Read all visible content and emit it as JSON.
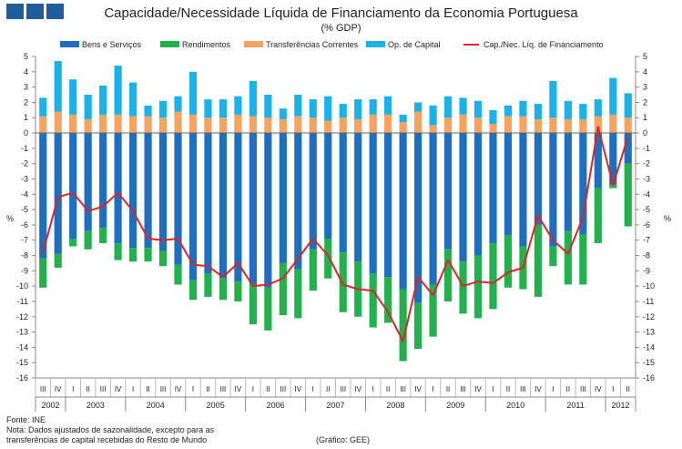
{
  "header": {
    "title": "Capacidade/Necessidade Líquida de Financiamento da Economia Portuguesa",
    "subtitle": "(% GDP)"
  },
  "footer": {
    "source": "Fonte: INE",
    "note_line1": "Nota: Dados ajustados de sazonalidade, excepto para as",
    "note_line2": "transferências de capital recebidas do Resto de Mundo",
    "credit": "(Gráfico: GEE)"
  },
  "chart_data": {
    "type": "bar",
    "stacked": true,
    "title": "Capacidade/Necessidade Líquida de Financiamento da Economia Portuguesa",
    "subtitle": "(% GDP)",
    "ylabel_left": "%",
    "ylabel_right": "%",
    "ylim": [
      -16,
      5
    ],
    "yticks": [
      5,
      4,
      3,
      2,
      1,
      0,
      -1,
      -2,
      -3,
      -4,
      -5,
      -6,
      -7,
      -8,
      -9,
      -10,
      -11,
      -12,
      -13,
      -14,
      -15,
      -16
    ],
    "grid": false,
    "legend_position": "top",
    "quarter_labels": [
      "III",
      "IV",
      "I",
      "II",
      "III",
      "IV",
      "I",
      "II",
      "III",
      "IV",
      "I",
      "II",
      "III",
      "IV",
      "I",
      "II",
      "III",
      "IV",
      "I",
      "II",
      "III",
      "IV",
      "I",
      "II",
      "III",
      "IV",
      "I",
      "II",
      "III",
      "IV",
      "I",
      "II",
      "III",
      "IV",
      "I",
      "II",
      "III",
      "IV",
      "I",
      "II"
    ],
    "years": [
      {
        "label": "2002",
        "start": 0,
        "count": 2
      },
      {
        "label": "2003",
        "start": 2,
        "count": 4
      },
      {
        "label": "2004",
        "start": 6,
        "count": 4
      },
      {
        "label": "2005",
        "start": 10,
        "count": 4
      },
      {
        "label": "2006",
        "start": 14,
        "count": 4
      },
      {
        "label": "2007",
        "start": 18,
        "count": 4
      },
      {
        "label": "2008",
        "start": 22,
        "count": 4
      },
      {
        "label": "2009",
        "start": 26,
        "count": 4
      },
      {
        "label": "2010",
        "start": 30,
        "count": 4
      },
      {
        "label": "2011",
        "start": 34,
        "count": 4
      },
      {
        "label": "2012",
        "start": 38,
        "count": 2
      }
    ],
    "series": [
      {
        "name": "Bens e Serviços",
        "color": "#1f6fc0",
        "kind": "bar",
        "values": [
          -8.2,
          -7.9,
          -6.9,
          -6.4,
          -6.2,
          -7.2,
          -7.5,
          -7.5,
          -7.7,
          -8.6,
          -9.6,
          -9.2,
          -9.5,
          -9.7,
          -9.9,
          -10.1,
          -8.5,
          -8.9,
          -7.6,
          -6.9,
          -7.8,
          -8.4,
          -9.2,
          -9.4,
          -10.2,
          -11.1,
          -9.9,
          -7.6,
          -8.4,
          -8.0,
          -7.2,
          -6.7,
          -7.4,
          -6.0,
          -7.4,
          -6.4,
          -6.6,
          -3.6,
          -3.4,
          -2.0
        ]
      },
      {
        "name": "Rendimentos",
        "color": "#22b14c",
        "kind": "bar",
        "values": [
          -1.9,
          -0.9,
          -0.5,
          -1.2,
          -1.0,
          -1.1,
          -0.9,
          -0.9,
          -1.0,
          -1.3,
          -1.3,
          -1.5,
          -1.4,
          -1.3,
          -2.6,
          -2.8,
          -3.4,
          -3.2,
          -2.7,
          -2.6,
          -3.9,
          -3.6,
          -3.5,
          -3.0,
          -4.7,
          -3.0,
          -3.4,
          -3.4,
          -3.4,
          -4.1,
          -4.3,
          -3.4,
          -2.8,
          -4.7,
          -1.3,
          -3.5,
          -3.3,
          -3.6,
          -0.2,
          -4.1
        ]
      },
      {
        "name": "Transferências Correntes",
        "color": "#f4a460",
        "kind": "bar",
        "values": [
          1.1,
          1.4,
          1.2,
          0.9,
          1.2,
          1.2,
          1.1,
          1.1,
          1.0,
          1.4,
          1.2,
          1.0,
          1.0,
          1.2,
          1.1,
          1.0,
          0.9,
          1.1,
          1.0,
          0.8,
          1.0,
          0.9,
          1.2,
          1.2,
          0.7,
          1.4,
          0.5,
          1.0,
          1.2,
          1.0,
          0.6,
          1.1,
          1.1,
          0.9,
          1.0,
          0.9,
          0.9,
          1.1,
          1.2,
          1.0
        ]
      },
      {
        "name": "Op. de Capital",
        "color": "#1ab2e8",
        "kind": "bar",
        "values": [
          1.2,
          3.3,
          2.3,
          1.6,
          1.9,
          3.2,
          2.2,
          0.7,
          1.1,
          1.0,
          2.8,
          1.2,
          1.2,
          1.2,
          2.3,
          1.5,
          0.7,
          1.4,
          1.2,
          1.6,
          0.9,
          1.3,
          1.0,
          1.2,
          0.5,
          0.6,
          1.3,
          1.4,
          1.1,
          1.1,
          0.9,
          0.7,
          1.0,
          1.0,
          2.4,
          1.2,
          1.0,
          1.1,
          2.4,
          1.6
        ]
      },
      {
        "name": "Cap./Nec. Líq. de Financiamento",
        "color": "#d62728",
        "kind": "line",
        "values": [
          -7.8,
          -4.2,
          -3.9,
          -5.1,
          -4.8,
          -3.9,
          -5.1,
          -6.9,
          -7.0,
          -6.9,
          -8.6,
          -8.7,
          -9.4,
          -8.5,
          -10.0,
          -9.9,
          -9.5,
          -8.2,
          -6.9,
          -8.0,
          -9.9,
          -10.2,
          -10.3,
          -11.7,
          -13.6,
          -9.4,
          -10.6,
          -8.3,
          -10.0,
          -9.7,
          -9.8,
          -9.1,
          -8.8,
          -5.4,
          -7.0,
          -7.9,
          -5.5,
          0.4,
          -3.4,
          -0.2
        ]
      }
    ]
  }
}
